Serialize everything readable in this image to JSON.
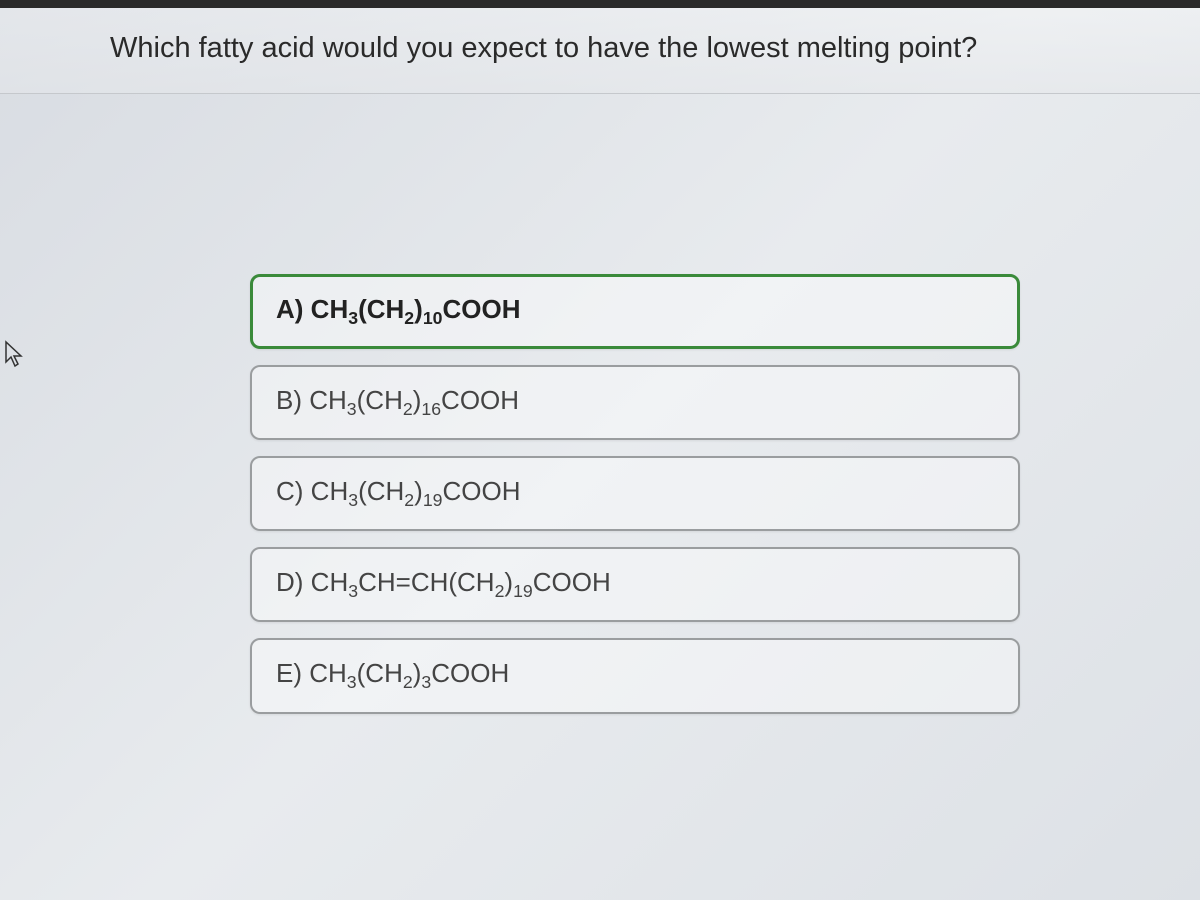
{
  "question": {
    "text": "Which fatty acid would you expect to have the lowest melting point?",
    "text_color": "#2a2a2a",
    "fontsize": 29
  },
  "options": [
    {
      "letter": "A)",
      "formula_parts": [
        {
          "t": "CH",
          "sub": "3"
        },
        {
          "t": "(CH",
          "sub": "2"
        },
        {
          "t": ")",
          "sub": "10"
        },
        {
          "t": "COOH",
          "sub": ""
        }
      ],
      "selected": true
    },
    {
      "letter": "B)",
      "formula_parts": [
        {
          "t": "CH",
          "sub": "3"
        },
        {
          "t": "(CH",
          "sub": "2"
        },
        {
          "t": ")",
          "sub": "16"
        },
        {
          "t": "COOH",
          "sub": ""
        }
      ],
      "selected": false
    },
    {
      "letter": "C)",
      "formula_parts": [
        {
          "t": "CH",
          "sub": "3"
        },
        {
          "t": "(CH",
          "sub": "2"
        },
        {
          "t": ")",
          "sub": "19"
        },
        {
          "t": "COOH",
          "sub": ""
        }
      ],
      "selected": false
    },
    {
      "letter": "D)",
      "formula_parts": [
        {
          "t": "CH",
          "sub": "3"
        },
        {
          "t": "CH=CH(CH",
          "sub": "2"
        },
        {
          "t": ")",
          "sub": "19"
        },
        {
          "t": "COOH",
          "sub": ""
        }
      ],
      "selected": false
    },
    {
      "letter": "E)",
      "formula_parts": [
        {
          "t": "CH",
          "sub": "3"
        },
        {
          "t": "(CH",
          "sub": "2"
        },
        {
          "t": ")",
          "sub": "3"
        },
        {
          "t": "COOH",
          "sub": ""
        }
      ],
      "selected": false
    }
  ],
  "styling": {
    "option_border_color": "#9a9d9f",
    "selected_border_color": "#3a8a3a",
    "option_bg": "rgba(255,255,255,0.4)",
    "page_bg_start": "#d8dce2",
    "page_bg_end": "#dde1e6",
    "option_fontsize": 26,
    "option_width": 770,
    "border_radius": 10
  },
  "cursor": {
    "glyph": "⇱",
    "visible": true
  }
}
